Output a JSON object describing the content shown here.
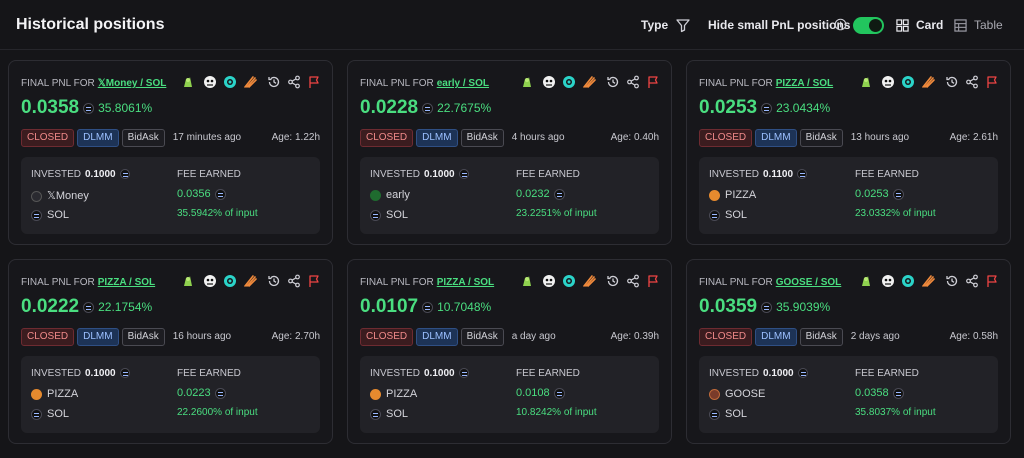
{
  "header": {
    "title": "Historical positions",
    "type_label": "Type",
    "hide_small_label": "Hide small PnL positions",
    "hide_small_enabled": true,
    "view_card_label": "Card",
    "view_table_label": "Table"
  },
  "colors": {
    "accent_green": "#4ade80",
    "toggle_on": "#22c55e",
    "closed_red": "#f08a8a",
    "dlmm_blue": "#9cc0ff",
    "flag_red": "#ef4444"
  },
  "card_labels": {
    "final_pnl_prefix": "FINAL PNL FOR",
    "invested": "INVESTED",
    "fee_earned": "FEE EARNED",
    "status": "CLOSED",
    "pool_type": "DLMM",
    "strategy": "BidAsk"
  },
  "cards": [
    {
      "pair": "𝕏Money / SOL",
      "pnl_value": "0.0358",
      "pnl_pct": "35.8061%",
      "time_ago": "17 minutes ago",
      "age": "Age: 1.22h",
      "invested": "0.1000",
      "token": "𝕏Money",
      "token_icon": "x-logo-icon",
      "quote": "SOL",
      "fee_value": "0.0356",
      "fee_pct": "35.5942% of input"
    },
    {
      "pair": "early / SOL",
      "pnl_value": "0.0228",
      "pnl_pct": "22.7675%",
      "time_ago": "4 hours ago",
      "age": "Age: 0.40h",
      "invested": "0.1000",
      "token": "early",
      "token_icon": "early-token-icon",
      "quote": "SOL",
      "fee_value": "0.0232",
      "fee_pct": "23.2251% of input"
    },
    {
      "pair": "PIZZA / SOL",
      "pnl_value": "0.0253",
      "pnl_pct": "23.0434%",
      "time_ago": "13 hours ago",
      "age": "Age: 2.61h",
      "invested": "0.1100",
      "token": "PIZZA",
      "token_icon": "pizza-token-icon",
      "quote": "SOL",
      "fee_value": "0.0253",
      "fee_pct": "23.0332% of input"
    },
    {
      "pair": "PIZZA / SOL",
      "pnl_value": "0.0222",
      "pnl_pct": "22.1754%",
      "time_ago": "16 hours ago",
      "age": "Age: 2.70h",
      "invested": "0.1000",
      "token": "PIZZA",
      "token_icon": "pizza-token-icon",
      "quote": "SOL",
      "fee_value": "0.0223",
      "fee_pct": "22.2600% of input"
    },
    {
      "pair": "PIZZA / SOL",
      "pnl_value": "0.0107",
      "pnl_pct": "10.7048%",
      "time_ago": "a day ago",
      "age": "Age: 0.39h",
      "invested": "0.1000",
      "token": "PIZZA",
      "token_icon": "pizza-token-icon",
      "quote": "SOL",
      "fee_value": "0.0108",
      "fee_pct": "10.8242% of input"
    },
    {
      "pair": "GOOSE / SOL",
      "pnl_value": "0.0359",
      "pnl_pct": "35.9039%",
      "time_ago": "2 days ago",
      "age": "Age: 0.58h",
      "invested": "0.1000",
      "token": "GOOSE",
      "token_icon": "goose-token-icon",
      "quote": "SOL",
      "fee_value": "0.0358",
      "fee_pct": "35.8037% of input"
    }
  ]
}
